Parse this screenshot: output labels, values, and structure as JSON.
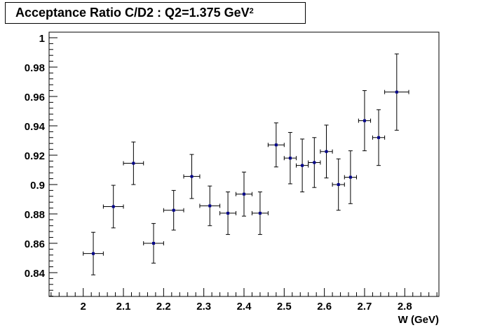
{
  "chart_data": {
    "type": "scatter",
    "title": "Acceptance Ratio C/D2 : Q2=1.375 GeV",
    "title_superscript": "2",
    "xlabel": "W (GeV)",
    "ylabel": "",
    "xlim": [
      1.915,
      2.885
    ],
    "ylim": [
      0.8238,
      1.0038
    ],
    "grid": false,
    "x_ticks": [
      2,
      2.1,
      2.2,
      2.3,
      2.4,
      2.5,
      2.6,
      2.7,
      2.8
    ],
    "x_tick_labels": [
      "2",
      "2.1",
      "2.2",
      "2.3",
      "2.4",
      "2.5",
      "2.6",
      "2.7",
      "2.8"
    ],
    "y_ticks": [
      0.84,
      0.86,
      0.88,
      0.9,
      0.92,
      0.94,
      0.96,
      0.98,
      1
    ],
    "y_tick_labels": [
      "0.84",
      "0.86",
      "0.88",
      "0.9",
      "0.92",
      "0.94",
      "0.96",
      "0.98",
      "1"
    ],
    "marker_color": "#00008b",
    "series": [
      {
        "points": [
          {
            "x": 2.025,
            "y": 0.853,
            "xerr": 0.025,
            "yerr": 0.0145
          },
          {
            "x": 2.075,
            "y": 0.885,
            "xerr": 0.025,
            "yerr": 0.0145
          },
          {
            "x": 2.125,
            "y": 0.9145,
            "xerr": 0.025,
            "yerr": 0.0145
          },
          {
            "x": 2.175,
            "y": 0.86,
            "xerr": 0.025,
            "yerr": 0.0135
          },
          {
            "x": 2.225,
            "y": 0.8825,
            "xerr": 0.025,
            "yerr": 0.0135
          },
          {
            "x": 2.27,
            "y": 0.9055,
            "xerr": 0.02,
            "yerr": 0.015
          },
          {
            "x": 2.315,
            "y": 0.8855,
            "xerr": 0.025,
            "yerr": 0.0135
          },
          {
            "x": 2.36,
            "y": 0.8805,
            "xerr": 0.02,
            "yerr": 0.0145
          },
          {
            "x": 2.4,
            "y": 0.8935,
            "xerr": 0.02,
            "yerr": 0.015
          },
          {
            "x": 2.44,
            "y": 0.8805,
            "xerr": 0.02,
            "yerr": 0.0145
          },
          {
            "x": 2.48,
            "y": 0.927,
            "xerr": 0.02,
            "yerr": 0.015
          },
          {
            "x": 2.515,
            "y": 0.918,
            "xerr": 0.015,
            "yerr": 0.0175
          },
          {
            "x": 2.545,
            "y": 0.913,
            "xerr": 0.015,
            "yerr": 0.018
          },
          {
            "x": 2.575,
            "y": 0.915,
            "xerr": 0.015,
            "yerr": 0.017
          },
          {
            "x": 2.605,
            "y": 0.9225,
            "xerr": 0.015,
            "yerr": 0.018
          },
          {
            "x": 2.635,
            "y": 0.9,
            "xerr": 0.015,
            "yerr": 0.0175
          },
          {
            "x": 2.665,
            "y": 0.905,
            "xerr": 0.015,
            "yerr": 0.018
          },
          {
            "x": 2.7,
            "y": 0.9435,
            "xerr": 0.015,
            "yerr": 0.0205
          },
          {
            "x": 2.735,
            "y": 0.932,
            "xerr": 0.015,
            "yerr": 0.019
          },
          {
            "x": 2.78,
            "y": 0.963,
            "xerr": 0.03,
            "yerr": 0.026
          }
        ]
      }
    ]
  }
}
